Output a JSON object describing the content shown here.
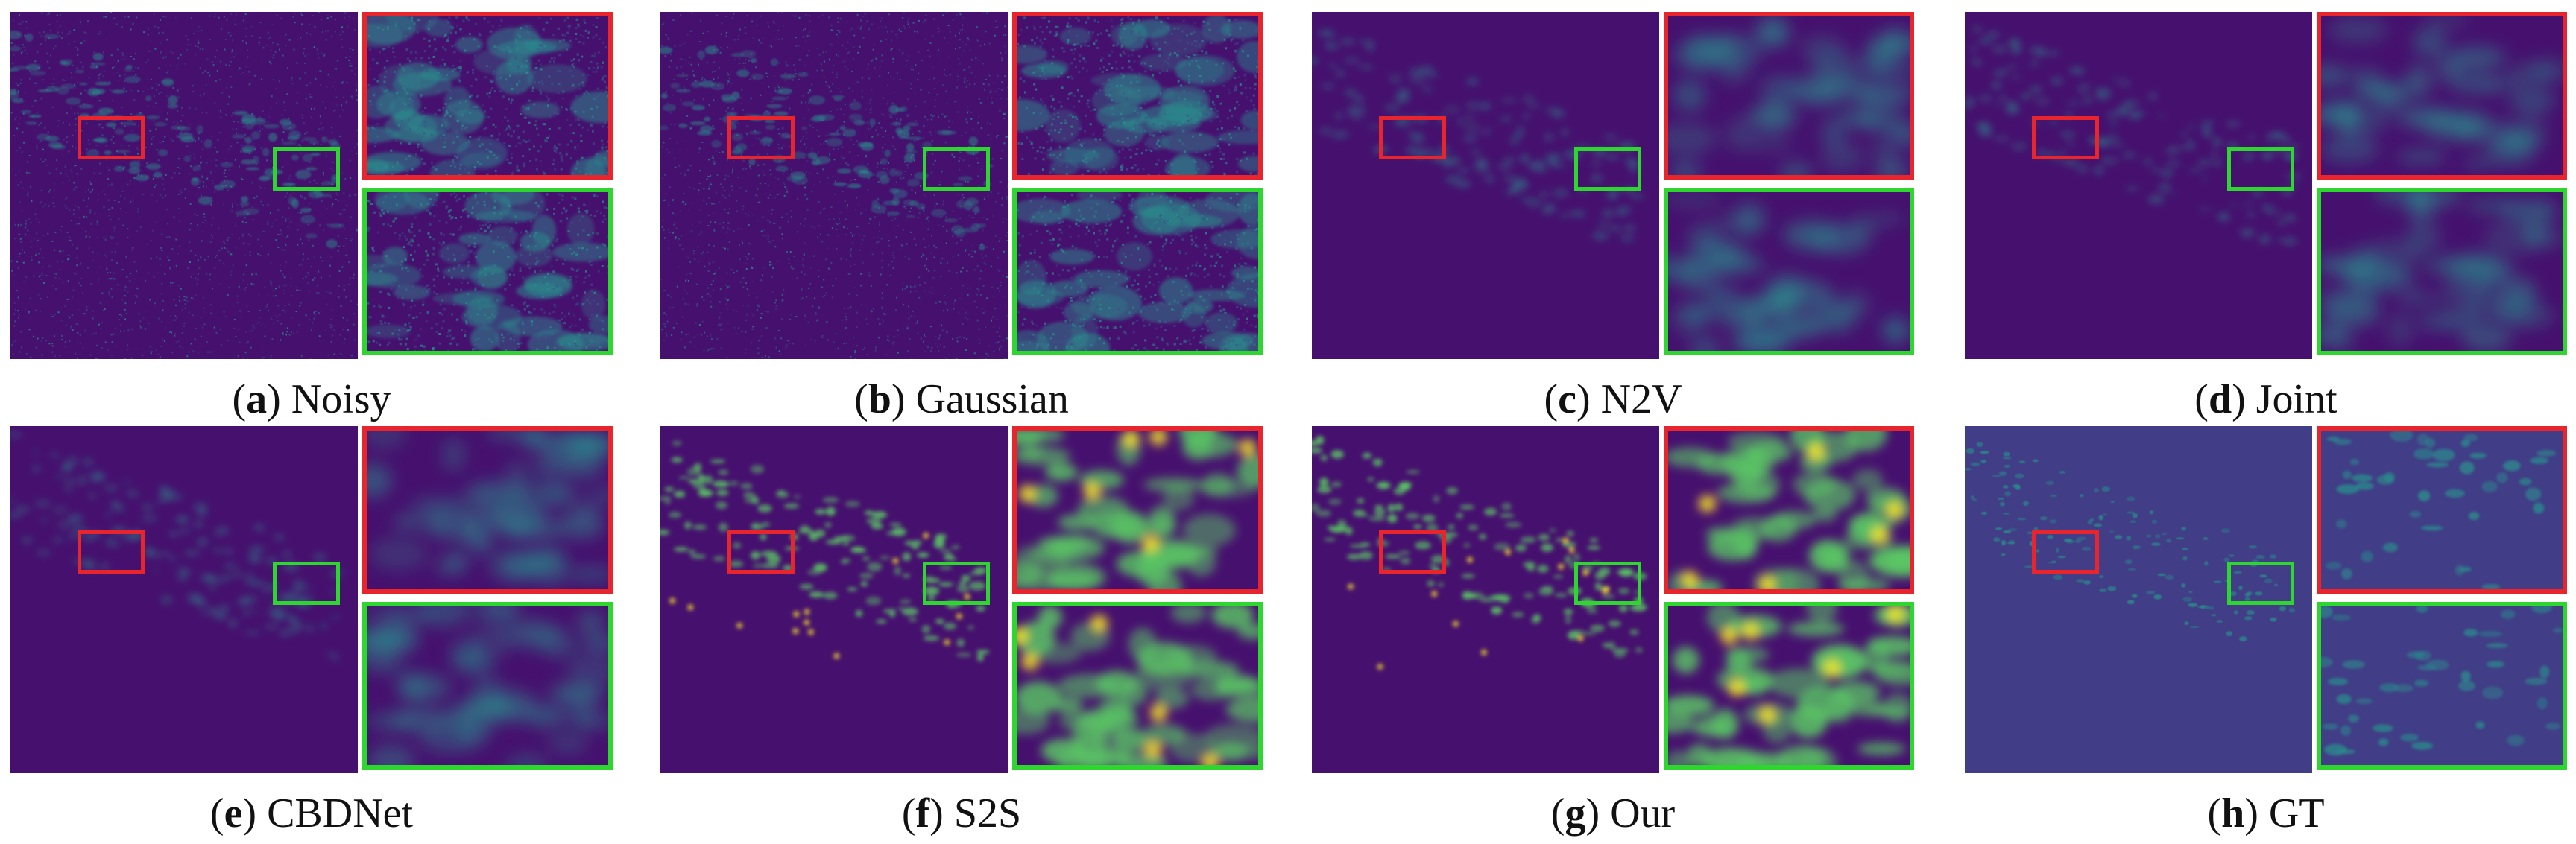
{
  "panels": [
    {
      "letter": "a",
      "label": "Noisy",
      "style": "noisy"
    },
    {
      "letter": "b",
      "label": "Gaussian",
      "style": "noisy"
    },
    {
      "letter": "c",
      "label": "N2V",
      "style": "blur"
    },
    {
      "letter": "d",
      "label": "Joint",
      "style": "blur"
    },
    {
      "letter": "e",
      "label": "CBDNet",
      "style": "blur"
    },
    {
      "letter": "f",
      "label": "S2S",
      "style": "bright"
    },
    {
      "letter": "g",
      "label": "Our",
      "style": "bright"
    },
    {
      "letter": "h",
      "label": "GT",
      "style": "gt"
    }
  ],
  "colors": {
    "background_purple": "#46106e",
    "gt_background": "#413d86",
    "roi_red": "#e8242c",
    "roi_green": "#2fd62f",
    "structure_teal": "#2a8d8c",
    "structure_green": "#5ac864",
    "structure_yellow": "#fde725"
  }
}
